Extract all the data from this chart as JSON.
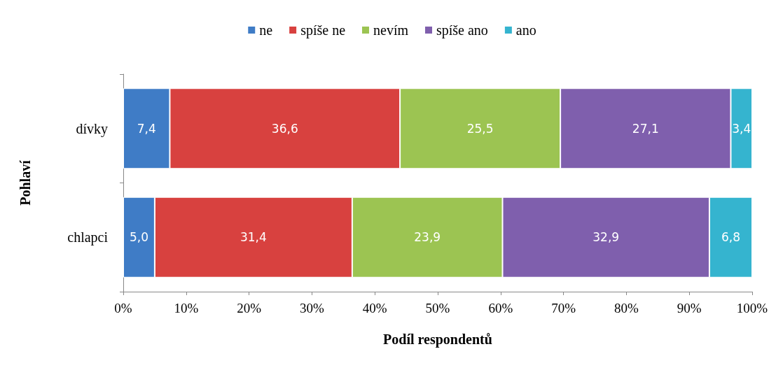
{
  "chart_data": {
    "type": "bar",
    "orientation": "horizontal",
    "stacked": true,
    "xlabel": "Podíl respondentů",
    "ylabel": "Pohlaví",
    "categories": [
      "dívky",
      "chlapci"
    ],
    "series": [
      {
        "name": "ne",
        "color": "#3f7cc6",
        "values": [
          7.4,
          5.0
        ],
        "value_labels": [
          "7,4",
          "5,0"
        ]
      },
      {
        "name": "spíše ne",
        "color": "#d8413f",
        "values": [
          36.6,
          31.4
        ],
        "value_labels": [
          "36,6",
          "31,4"
        ]
      },
      {
        "name": "nevím",
        "color": "#9cc452",
        "values": [
          25.5,
          23.9
        ],
        "value_labels": [
          "25,5",
          "23,9"
        ]
      },
      {
        "name": "spíše ano",
        "color": "#7f5fad",
        "values": [
          27.1,
          32.9
        ],
        "value_labels": [
          "27,1",
          "32,9"
        ]
      },
      {
        "name": "ano",
        "color": "#35b4cf",
        "values": [
          3.4,
          6.8
        ],
        "value_labels": [
          "3,4",
          "6,8"
        ]
      }
    ],
    "xlim": [
      0,
      100
    ],
    "xticks": [
      {
        "value": 0,
        "label": "0%"
      },
      {
        "value": 10,
        "label": "10%"
      },
      {
        "value": 20,
        "label": "20%"
      },
      {
        "value": 30,
        "label": "30%"
      },
      {
        "value": 40,
        "label": "40%"
      },
      {
        "value": 50,
        "label": "50%"
      },
      {
        "value": 60,
        "label": "60%"
      },
      {
        "value": 70,
        "label": "70%"
      },
      {
        "value": 80,
        "label": "80%"
      },
      {
        "value": 90,
        "label": "90%"
      },
      {
        "value": 100,
        "label": "100%"
      }
    ],
    "legend": "top",
    "grid": false
  }
}
